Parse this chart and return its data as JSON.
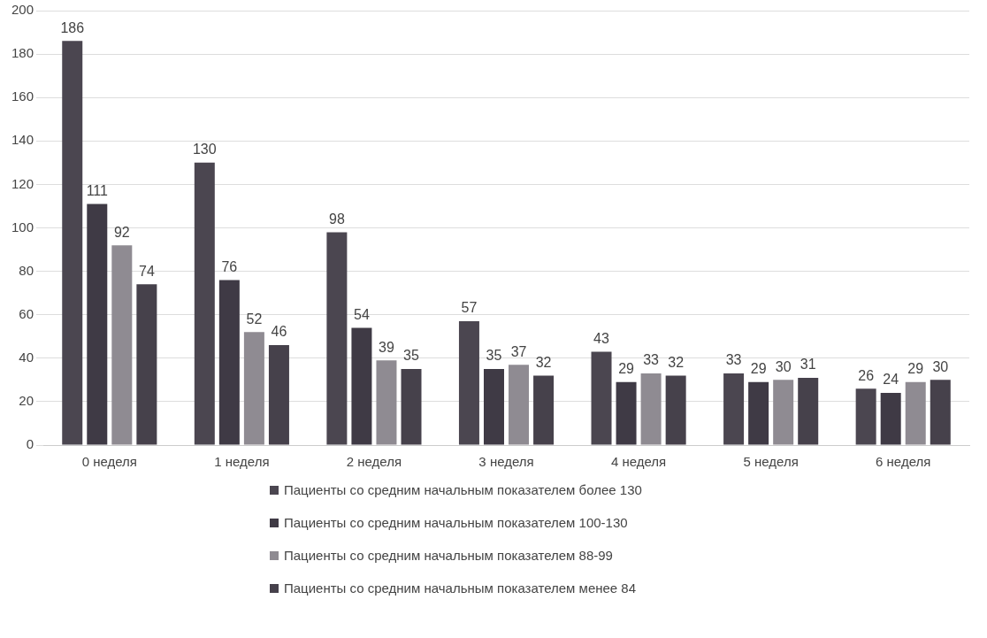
{
  "chart_data": {
    "type": "bar",
    "categories": [
      "0 неделя",
      "1 неделя",
      "2 неделя",
      "3 неделя",
      "4 неделя",
      "5 неделя",
      "6 неделя"
    ],
    "series": [
      {
        "name": "Пациенты со средним начальным показателем более 130",
        "color": "#4b4650",
        "values": [
          186,
          130,
          98,
          57,
          43,
          33,
          26
        ]
      },
      {
        "name": "Пациенты со средним начальным показателем 100-130",
        "color": "#3f3a45",
        "values": [
          111,
          76,
          54,
          35,
          29,
          29,
          24
        ]
      },
      {
        "name": "Пациенты со средним начальным показателем 88-99",
        "color": "#8f8b92",
        "values": [
          92,
          52,
          39,
          37,
          33,
          30,
          29
        ]
      },
      {
        "name": "Пациенты со средним начальным показателем менее 84",
        "color": "#46414b",
        "values": [
          74,
          46,
          35,
          32,
          32,
          31,
          30
        ]
      }
    ],
    "ylim": [
      0,
      200
    ],
    "yticks": [
      0,
      20,
      40,
      60,
      80,
      100,
      120,
      140,
      160,
      180,
      200
    ],
    "grid": "y",
    "legend": "bottom",
    "data_labels": true
  }
}
